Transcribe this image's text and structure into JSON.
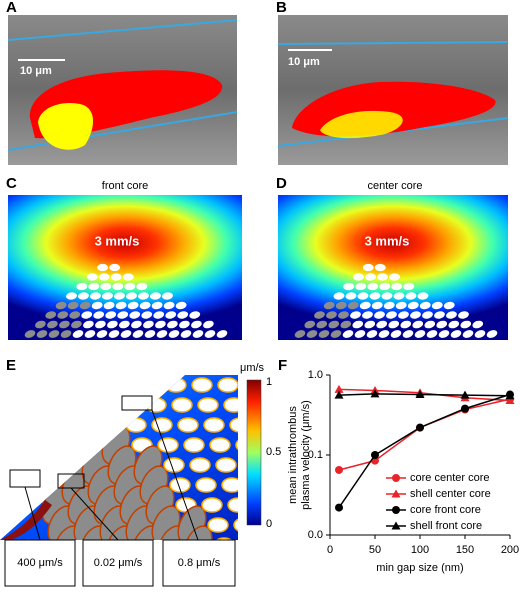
{
  "panels": {
    "A": {
      "label": "A",
      "scale_bar": "10 μm"
    },
    "B": {
      "label": "B",
      "scale_bar": "10 μm"
    },
    "C": {
      "label": "C",
      "title": "front core",
      "annotation": "3 mm/s"
    },
    "D": {
      "label": "D",
      "title": "center core",
      "annotation": "3 mm/s"
    },
    "E": {
      "label": "E",
      "colorbar_unit": "μm/s",
      "colorbar_ticks": [
        1,
        0.5,
        0
      ],
      "boxes": [
        "400 μm/s",
        "0.02 μm/s",
        "0.8 μm/s"
      ]
    },
    "F": {
      "label": "F"
    }
  },
  "chart_data": {
    "type": "line",
    "x_label": "min gap size (nm)",
    "y_label": [
      "mean intrathrombus",
      "plasma velocity (μm/s)"
    ],
    "x": [
      10,
      50,
      100,
      150,
      200
    ],
    "xlim": [
      0,
      200
    ],
    "xticks": [
      0,
      50,
      100,
      150,
      200
    ],
    "yscale": "log",
    "ylim": [
      0.01,
      1
    ],
    "yticks": [
      {
        "value": 1,
        "label": "1.0"
      },
      0.1,
      {
        "value": 0.01,
        "label": "0.0"
      }
    ],
    "series": [
      {
        "name": "core center core",
        "color": "#e8242a",
        "marker": "circle",
        "values": [
          0.065,
          0.085,
          0.22,
          0.37,
          0.5
        ]
      },
      {
        "name": "shell center core",
        "color": "#e8242a",
        "marker": "triangle",
        "values": [
          0.66,
          0.64,
          0.6,
          0.52,
          0.48
        ]
      },
      {
        "name": "core front core",
        "color": "#000000",
        "marker": "circle",
        "values": [
          0.022,
          0.1,
          0.22,
          0.38,
          0.57
        ]
      },
      {
        "name": "shell front core",
        "color": "#000000",
        "marker": "triangle",
        "values": [
          0.56,
          0.58,
          0.57,
          0.56,
          0.55
        ]
      }
    ]
  }
}
